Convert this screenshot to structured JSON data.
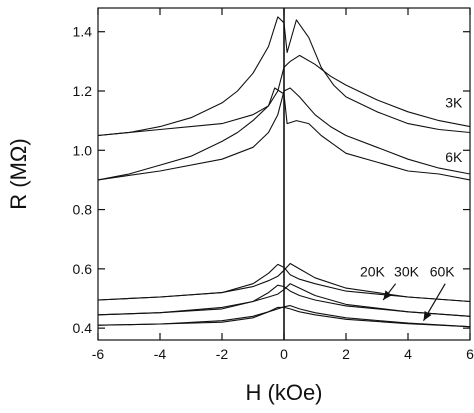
{
  "chart_data": {
    "type": "line",
    "title": "",
    "xlabel": "H (kOe)",
    "ylabel": "R (MΩ)",
    "xlim": [
      -6,
      6
    ],
    "ylim": [
      0.36,
      1.48
    ],
    "xticks": [
      -6,
      -4,
      -2,
      0,
      2,
      4,
      6
    ],
    "yticks": [
      0.4,
      0.6,
      0.8,
      1.0,
      1.2,
      1.4
    ],
    "xtick_labels": [
      "-6",
      "-4",
      "-2",
      "0",
      "2",
      "4",
      "6"
    ],
    "ytick_labels": [
      "0.4",
      "0.6",
      "0.8",
      "1.0",
      "1.2",
      "1.4"
    ],
    "grid": false,
    "vertical_reference_line_x": 0,
    "series": [
      {
        "name": "3K",
        "sweeps": [
          {
            "x": [
              -6,
              -4,
              -2,
              -1,
              -0.5,
              -0.2,
              0,
              0.2,
              0.5,
              1,
              1.5,
              2,
              3,
              4,
              5,
              6
            ],
            "y": [
              1.05,
              1.07,
              1.09,
              1.12,
              1.15,
              1.2,
              1.28,
              1.3,
              1.32,
              1.29,
              1.25,
              1.22,
              1.17,
              1.13,
              1.1,
              1.08
            ]
          },
          {
            "x": [
              -6,
              -5,
              -4,
              -3,
              -2,
              -1.5,
              -1,
              -0.5,
              -0.2,
              0,
              0.1,
              0.4,
              0.8,
              1.2,
              1.6,
              2,
              3,
              4,
              5,
              6
            ],
            "y": [
              1.05,
              1.06,
              1.08,
              1.11,
              1.16,
              1.2,
              1.26,
              1.35,
              1.45,
              1.43,
              1.33,
              1.44,
              1.38,
              1.28,
              1.22,
              1.18,
              1.13,
              1.09,
              1.07,
              1.06
            ]
          }
        ]
      },
      {
        "name": "6K",
        "sweeps": [
          {
            "x": [
              -6,
              -4,
              -2,
              -1,
              -0.5,
              -0.2,
              0,
              0.2,
              0.5,
              1,
              1.5,
              2,
              3,
              4,
              5,
              6
            ],
            "y": [
              0.9,
              0.93,
              0.97,
              1.01,
              1.06,
              1.12,
              1.2,
              1.21,
              1.18,
              1.12,
              1.08,
              1.05,
              1.01,
              0.97,
              0.94,
              0.92
            ]
          },
          {
            "x": [
              -6,
              -5,
              -4,
              -3,
              -2,
              -1.5,
              -1,
              -0.5,
              -0.3,
              0,
              0.1,
              0.4,
              0.8,
              1.2,
              1.6,
              2,
              3,
              4,
              5,
              6
            ],
            "y": [
              0.9,
              0.92,
              0.95,
              0.98,
              1.03,
              1.06,
              1.1,
              1.15,
              1.21,
              1.19,
              1.09,
              1.1,
              1.09,
              1.05,
              1.02,
              0.99,
              0.96,
              0.93,
              0.92,
              0.9
            ]
          }
        ]
      },
      {
        "name": "20K",
        "sweeps": [
          {
            "x": [
              -6,
              -4,
              -2,
              -1,
              -0.5,
              -0.2,
              0,
              0.2,
              0.5,
              1,
              2,
              4,
              6
            ],
            "y": [
              0.495,
              0.505,
              0.52,
              0.55,
              0.585,
              0.615,
              0.605,
              0.58,
              0.565,
              0.55,
              0.525,
              0.505,
              0.49
            ]
          },
          {
            "x": [
              -6,
              -4,
              -2,
              -1,
              -0.5,
              -0.2,
              0,
              0.2,
              0.5,
              1,
              2,
              4,
              6
            ],
            "y": [
              0.495,
              0.505,
              0.52,
              0.54,
              0.56,
              0.575,
              0.595,
              0.618,
              0.6,
              0.57,
              0.535,
              0.505,
              0.49
            ]
          }
        ]
      },
      {
        "name": "30K",
        "sweeps": [
          {
            "x": [
              -6,
              -4,
              -2,
              -1,
              -0.5,
              -0.2,
              0,
              0.2,
              0.5,
              1,
              2,
              4,
              6
            ],
            "y": [
              0.445,
              0.452,
              0.465,
              0.49,
              0.52,
              0.545,
              0.54,
              0.525,
              0.51,
              0.495,
              0.475,
              0.455,
              0.44
            ]
          },
          {
            "x": [
              -6,
              -4,
              -2,
              -1,
              -0.5,
              -0.2,
              0,
              0.2,
              0.5,
              1,
              2,
              4,
              6
            ],
            "y": [
              0.445,
              0.452,
              0.47,
              0.49,
              0.505,
              0.515,
              0.53,
              0.55,
              0.535,
              0.51,
              0.48,
              0.455,
              0.44
            ]
          }
        ]
      },
      {
        "name": "60K",
        "sweeps": [
          {
            "x": [
              -6,
              -4,
              -2,
              -1,
              -0.5,
              -0.2,
              0,
              0.2,
              0.5,
              1,
              2,
              4,
              6
            ],
            "y": [
              0.41,
              0.414,
              0.42,
              0.435,
              0.455,
              0.47,
              0.47,
              0.465,
              0.455,
              0.445,
              0.43,
              0.415,
              0.405
            ]
          },
          {
            "x": [
              -6,
              -4,
              -2,
              -1,
              -0.5,
              -0.2,
              0,
              0.2,
              0.5,
              1,
              2,
              4,
              6
            ],
            "y": [
              0.41,
              0.414,
              0.425,
              0.44,
              0.455,
              0.465,
              0.472,
              0.476,
              0.465,
              0.452,
              0.435,
              0.417,
              0.405
            ]
          }
        ]
      }
    ],
    "annotations": [
      {
        "text": "3K",
        "x": 5.2,
        "y": 1.145,
        "anchor": "start"
      },
      {
        "text": "6K",
        "x": 5.2,
        "y": 0.96,
        "anchor": "start"
      },
      {
        "text": "20K",
        "x": 2.45,
        "y": 0.575,
        "anchor": "start"
      },
      {
        "text": "30K",
        "x": 3.55,
        "y": 0.575,
        "anchor": "start"
      },
      {
        "text": "60K",
        "x": 4.7,
        "y": 0.575,
        "anchor": "start"
      }
    ],
    "arrows": [
      {
        "from": [
          3.6,
          0.55
        ],
        "to": [
          3.2,
          0.495
        ]
      },
      {
        "from": [
          5.2,
          0.55
        ],
        "to": [
          4.5,
          0.425
        ]
      }
    ]
  }
}
